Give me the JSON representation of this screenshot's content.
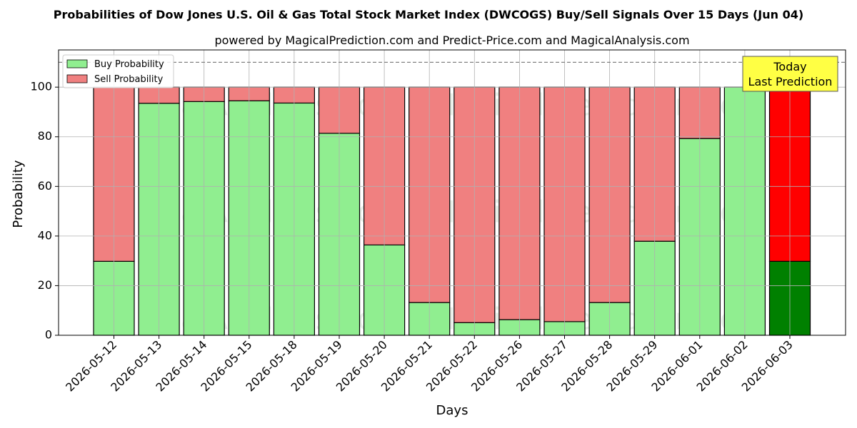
{
  "chart_data": {
    "type": "bar",
    "stacked": true,
    "title": "Probabilities of Dow Jones U.S. Oil & Gas Total Stock Market Index (DWCOGS) Buy/Sell Signals Over 15 Days (Jun 04)",
    "subtitle": "powered by MagicalPrediction.com and Predict-Price.com and MagicalAnalysis.com",
    "xlabel": "Days",
    "ylabel": "Probability",
    "ylim": [
      0,
      115
    ],
    "yticks": [
      0,
      20,
      40,
      60,
      80,
      100
    ],
    "reference_line": 110,
    "grid": true,
    "legend_position": "top-left",
    "categories": [
      "2026-05-12",
      "2026-05-13",
      "2026-05-14",
      "2026-05-15",
      "2026-05-18",
      "2026-05-19",
      "2026-05-20",
      "2026-05-21",
      "2026-05-22",
      "2026-05-26",
      "2026-05-27",
      "2026-05-28",
      "2026-05-29",
      "2026-06-01",
      "2026-06-02",
      "2026-06-03"
    ],
    "series": [
      {
        "name": "Buy Probability",
        "color": "#90ee90",
        "highlight_color": "#008000",
        "values": [
          29.8,
          93.5,
          94.2,
          94.5,
          93.6,
          81.4,
          36.4,
          13.2,
          5.1,
          6.3,
          5.5,
          13.2,
          37.9,
          79.3,
          100,
          29.8
        ]
      },
      {
        "name": "Sell Probability",
        "color": "#f08080",
        "highlight_color": "#ff0000",
        "values": [
          70.2,
          6.5,
          5.8,
          5.5,
          6.4,
          18.6,
          63.6,
          86.8,
          94.9,
          93.7,
          94.5,
          86.8,
          62.1,
          20.7,
          0,
          70.2
        ]
      }
    ],
    "highlight_index": 15,
    "annotation": {
      "lines": [
        "Today",
        "Last Prediction"
      ],
      "background": "#ffff44"
    },
    "watermarks": [
      "MagicalAnalysis.com",
      "MagicalPrediction.com",
      "MagicalAnalysis.com",
      "MagicalPrediction.com",
      "MagicalAnalysis.com",
      "MagicalPrediction.com"
    ]
  }
}
